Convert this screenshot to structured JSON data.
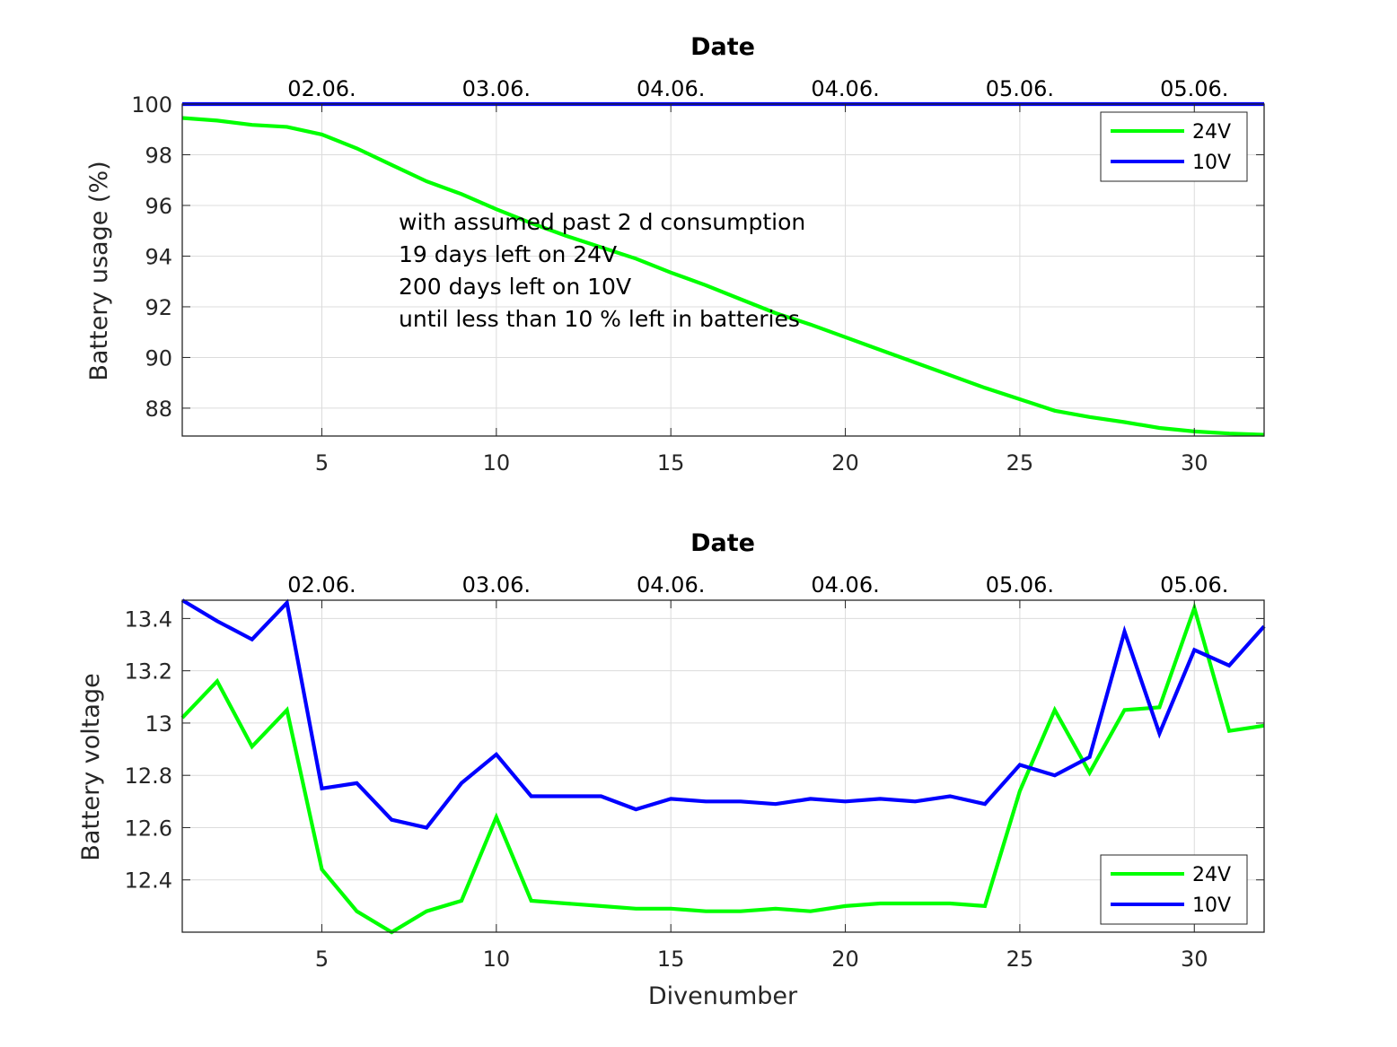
{
  "chart_data": [
    {
      "type": "line",
      "id": "usage",
      "title": "Date",
      "xlabel": "",
      "ylabel": "Battery usage (%)",
      "xlim": [
        1,
        32
      ],
      "ylim": [
        86.9,
        100
      ],
      "grid": true,
      "legend_position": "top-right",
      "x_ticks": [
        5,
        10,
        15,
        20,
        25,
        30
      ],
      "y_ticks": [
        88,
        90,
        92,
        94,
        96,
        98,
        100
      ],
      "top_ticks": [
        {
          "x": 5,
          "label": "02.06."
        },
        {
          "x": 10,
          "label": "03.06."
        },
        {
          "x": 15,
          "label": "04.06."
        },
        {
          "x": 20,
          "label": "04.06."
        },
        {
          "x": 25,
          "label": "05.06."
        },
        {
          "x": 30,
          "label": "05.06."
        }
      ],
      "annotation": [
        "with assumed past 2 d consumption",
        "19 days left on 24V",
        "200 days left on 10V",
        "until less than 10 % left in batteries"
      ],
      "x": [
        1,
        2,
        3,
        4,
        5,
        6,
        7,
        8,
        9,
        10,
        11,
        12,
        13,
        14,
        15,
        16,
        17,
        18,
        19,
        20,
        21,
        22,
        23,
        24,
        25,
        26,
        27,
        28,
        29,
        30,
        31,
        32
      ],
      "series": [
        {
          "name": "24V",
          "color": "#00ff00",
          "values": [
            99.45,
            99.35,
            99.18,
            99.1,
            98.8,
            98.25,
            97.6,
            96.95,
            96.45,
            95.85,
            95.3,
            94.8,
            94.35,
            93.9,
            93.35,
            92.85,
            92.3,
            91.75,
            91.3,
            90.8,
            90.3,
            89.8,
            89.3,
            88.8,
            88.35,
            87.9,
            87.65,
            87.45,
            87.22,
            87.08,
            87.0,
            86.95
          ]
        },
        {
          "name": "10V",
          "color": "#0000ff",
          "values": [
            100,
            100,
            100,
            100,
            100,
            100,
            100,
            100,
            100,
            100,
            100,
            100,
            100,
            100,
            100,
            100,
            100,
            100,
            100,
            100,
            100,
            100,
            100,
            100,
            100,
            100,
            100,
            100,
            100,
            100,
            100,
            100
          ]
        }
      ]
    },
    {
      "type": "line",
      "id": "voltage",
      "title": "Date",
      "xlabel": "Divenumber",
      "ylabel": "Battery voltage",
      "xlim": [
        1,
        32
      ],
      "ylim": [
        12.2,
        13.47
      ],
      "grid": true,
      "legend_position": "bottom-right",
      "x_ticks": [
        5,
        10,
        15,
        20,
        25,
        30
      ],
      "y_ticks": [
        12.4,
        12.6,
        12.8,
        13,
        13.2,
        13.4
      ],
      "top_ticks": [
        {
          "x": 5,
          "label": "02.06."
        },
        {
          "x": 10,
          "label": "03.06."
        },
        {
          "x": 15,
          "label": "04.06."
        },
        {
          "x": 20,
          "label": "04.06."
        },
        {
          "x": 25,
          "label": "05.06."
        },
        {
          "x": 30,
          "label": "05.06."
        }
      ],
      "x": [
        1,
        2,
        3,
        4,
        5,
        6,
        7,
        8,
        9,
        10,
        11,
        12,
        13,
        14,
        15,
        16,
        17,
        18,
        19,
        20,
        21,
        22,
        23,
        24,
        25,
        26,
        27,
        28,
        29,
        30,
        31,
        32
      ],
      "series": [
        {
          "name": "24V",
          "color": "#00ff00",
          "values": [
            13.02,
            13.16,
            12.91,
            13.05,
            12.44,
            12.28,
            12.2,
            12.28,
            12.32,
            12.64,
            12.32,
            12.31,
            12.3,
            12.29,
            12.29,
            12.28,
            12.28,
            12.29,
            12.28,
            12.3,
            12.31,
            12.31,
            12.31,
            12.3,
            12.74,
            13.05,
            12.81,
            13.05,
            13.06,
            13.44,
            12.97,
            12.99
          ]
        },
        {
          "name": "10V",
          "color": "#0000ff",
          "values": [
            13.47,
            13.39,
            13.32,
            13.46,
            12.75,
            12.77,
            12.63,
            12.6,
            12.77,
            12.88,
            12.72,
            12.72,
            12.72,
            12.67,
            12.71,
            12.7,
            12.7,
            12.69,
            12.71,
            12.7,
            12.71,
            12.7,
            12.72,
            12.69,
            12.84,
            12.8,
            12.87,
            13.35,
            12.96,
            13.28,
            13.22,
            13.37
          ]
        }
      ]
    }
  ]
}
